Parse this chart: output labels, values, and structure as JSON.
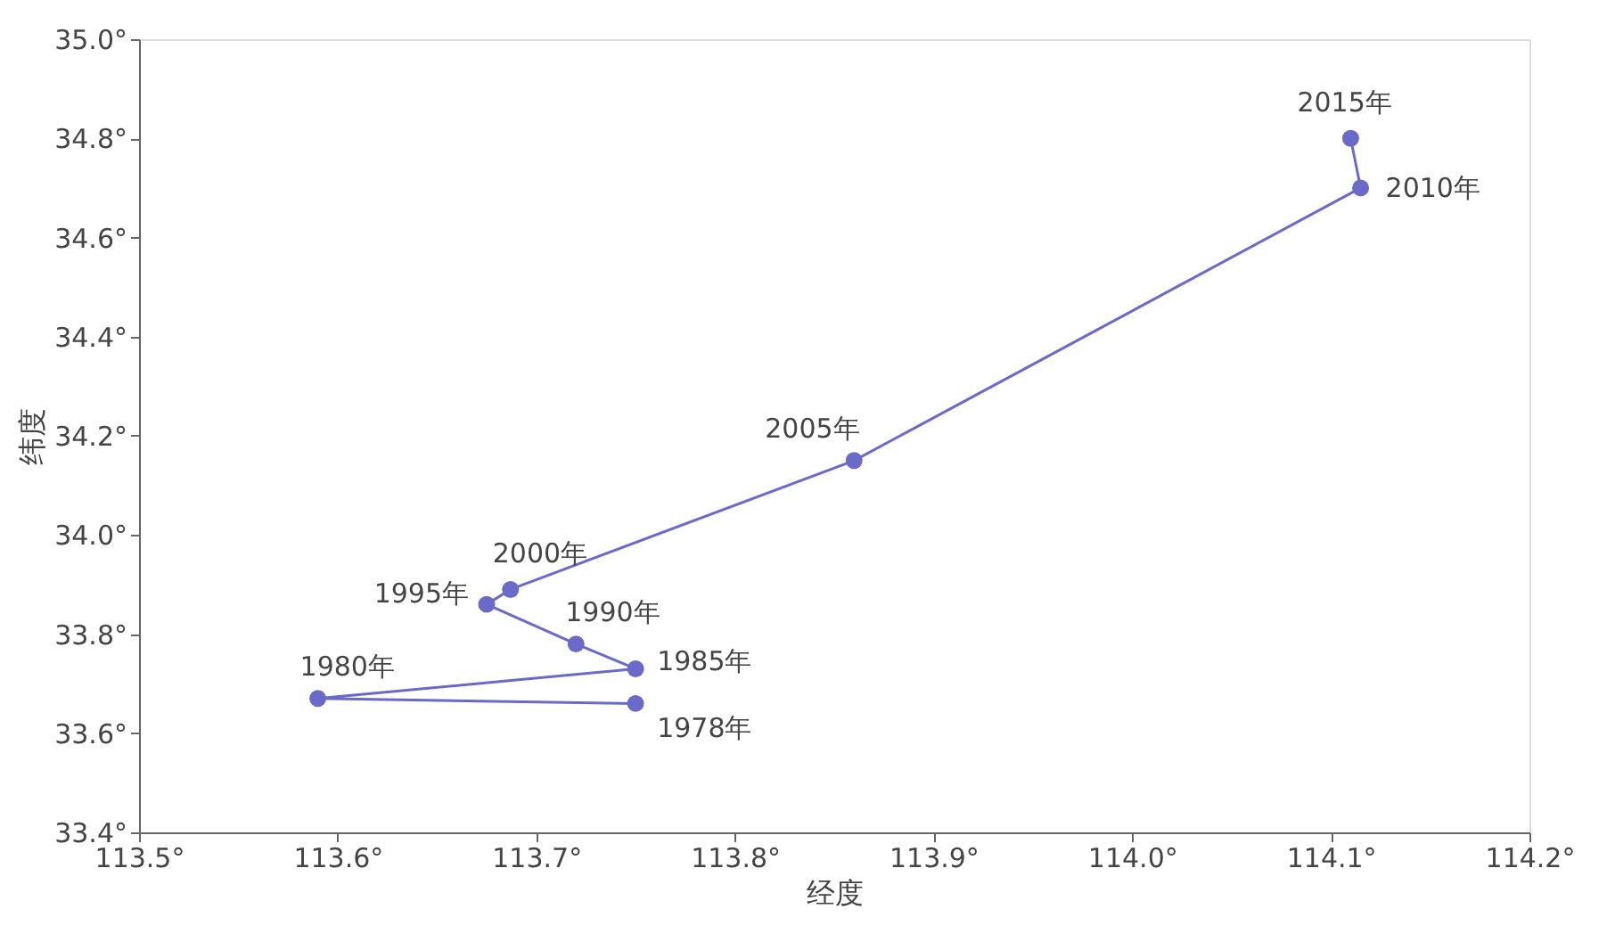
{
  "chart_data": {
    "type": "line",
    "xlabel": "经度",
    "ylabel": "纬度",
    "x": [
      113.75,
      113.59,
      113.75,
      113.72,
      113.675,
      113.687,
      113.86,
      114.115,
      114.11
    ],
    "series": [
      {
        "color": "#6a6ac8",
        "values": [
          33.66,
          33.67,
          33.73,
          33.78,
          33.86,
          33.89,
          34.15,
          34.7,
          34.8
        ]
      }
    ],
    "marker": "circle",
    "line_style": "solid",
    "grid": false,
    "xlim": [
      113.5,
      114.2
    ],
    "ylim": [
      33.4,
      35.0
    ],
    "xticks": [
      {
        "value": 113.5,
        "label": "113.5°"
      },
      {
        "value": 113.6,
        "label": "113.6°"
      },
      {
        "value": 113.7,
        "label": "113.7°"
      },
      {
        "value": 113.8,
        "label": "113.8°"
      },
      {
        "value": 113.9,
        "label": "113.9°"
      },
      {
        "value": 114.0,
        "label": "114.0°"
      },
      {
        "value": 114.1,
        "label": "114.1°"
      },
      {
        "value": 114.2,
        "label": "114.2°"
      }
    ],
    "yticks": [
      {
        "value": 33.4,
        "label": "33.4°"
      },
      {
        "value": 33.6,
        "label": "33.6°"
      },
      {
        "value": 33.8,
        "label": "33.8°"
      },
      {
        "value": 34.0,
        "label": "34.0°"
      },
      {
        "value": 34.2,
        "label": "34.2°"
      },
      {
        "value": 34.4,
        "label": "34.4°"
      },
      {
        "value": 34.6,
        "label": "34.6°"
      },
      {
        "value": 34.8,
        "label": "34.8°"
      },
      {
        "value": 35.0,
        "label": "35.0°"
      }
    ],
    "annotations": [
      {
        "text": "1978年",
        "x": 113.75,
        "y": 33.66
      },
      {
        "text": "1980年",
        "x": 113.59,
        "y": 33.67
      },
      {
        "text": "1985年",
        "x": 113.75,
        "y": 33.73
      },
      {
        "text": "1990年",
        "x": 113.72,
        "y": 33.78
      },
      {
        "text": "1995年",
        "x": 113.675,
        "y": 33.86
      },
      {
        "text": "2000年",
        "x": 113.687,
        "y": 33.89
      },
      {
        "text": "2005年",
        "x": 113.86,
        "y": 34.15
      },
      {
        "text": "2010年",
        "x": 114.115,
        "y": 34.7
      },
      {
        "text": "2015年",
        "x": 114.11,
        "y": 34.8
      }
    ]
  }
}
